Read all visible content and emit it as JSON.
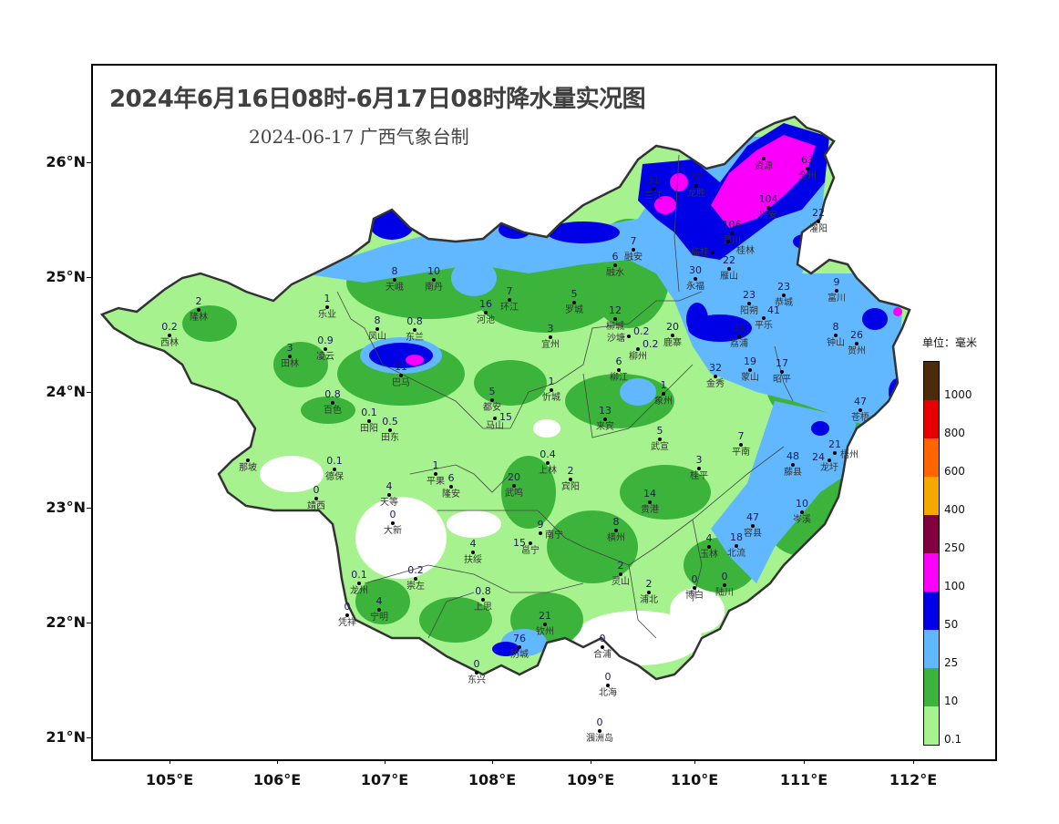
{
  "title": "2024年6月16日08时-6月17日08时降水量实况图",
  "subtitle": "2024-06-17  广西气象台制",
  "axes": {
    "lat_labels": [
      "26°N",
      "25°N",
      "24°N",
      "23°N",
      "22°N",
      "21°N"
    ],
    "lon_labels": [
      "105°E",
      "106°E",
      "107°E",
      "108°E",
      "109°E",
      "110°E",
      "111°E",
      "112°E"
    ]
  },
  "legend": {
    "unit": "单位：毫米",
    "levels": [
      {
        "label": "1000",
        "color": "#4d2a0a"
      },
      {
        "label": "800",
        "color": "#e60000"
      },
      {
        "label": "600",
        "color": "#ff6600"
      },
      {
        "label": "400",
        "color": "#f5a800"
      },
      {
        "label": "250",
        "color": "#800040"
      },
      {
        "label": "100",
        "color": "#fa00fa"
      },
      {
        "label": "50",
        "color": "#0000e6"
      },
      {
        "label": "25",
        "color": "#61b8ff"
      },
      {
        "label": "10",
        "color": "#3cb43c"
      },
      {
        "label": "0.1",
        "color": "#a6f28f"
      }
    ]
  },
  "stations": [
    {
      "name": "隆林",
      "value": "2"
    },
    {
      "name": "西林",
      "value": "0.2"
    },
    {
      "name": "乐业",
      "value": "1"
    },
    {
      "name": "田林",
      "value": "3"
    },
    {
      "name": "凌云",
      "value": "0.9"
    },
    {
      "name": "凤山",
      "value": "8"
    },
    {
      "name": "东兰",
      "value": "0.8"
    },
    {
      "name": "天峨",
      "value": "8"
    },
    {
      "name": "南丹",
      "value": "10"
    },
    {
      "name": "巴马",
      "value": "11"
    },
    {
      "name": "河池",
      "value": "16"
    },
    {
      "name": "环江",
      "value": "7"
    },
    {
      "name": "罗城",
      "value": "5"
    },
    {
      "name": "宜州",
      "value": "3"
    },
    {
      "name": "融水",
      "value": "6"
    },
    {
      "name": "融安",
      "value": "7"
    },
    {
      "name": "三江",
      "value": "31"
    },
    {
      "name": "龙胜",
      "value": "37"
    },
    {
      "name": "资源",
      "value": ""
    },
    {
      "name": "全州",
      "value": "63"
    },
    {
      "name": "兴安",
      "value": "104"
    },
    {
      "name": "灌阳",
      "value": "22"
    },
    {
      "name": "灵川",
      "value": "106"
    },
    {
      "name": "桂林",
      "value": ""
    },
    {
      "name": "临桂",
      "value": ""
    },
    {
      "name": "雁山",
      "value": "22"
    },
    {
      "name": "永福",
      "value": "30"
    },
    {
      "name": "阳朔",
      "value": "23"
    },
    {
      "name": "恭城",
      "value": "23"
    },
    {
      "name": "平乐",
      "value": "41"
    },
    {
      "name": "荔浦",
      "value": "31"
    },
    {
      "name": "富川",
      "value": "9"
    },
    {
      "name": "钟山",
      "value": "8"
    },
    {
      "name": "贺州",
      "value": "26"
    },
    {
      "name": "蒙山",
      "value": "19"
    },
    {
      "name": "昭平",
      "value": "17"
    },
    {
      "name": "金秀",
      "value": "32"
    },
    {
      "name": "柳城",
      "value": "12"
    },
    {
      "name": "沙塘",
      "value": "0.2"
    },
    {
      "name": "柳州",
      "value": "0.2"
    },
    {
      "name": "柳江",
      "value": "6"
    },
    {
      "name": "鹿寨",
      "value": "20"
    },
    {
      "name": "忻城",
      "value": "1"
    },
    {
      "name": "象州",
      "value": "1"
    },
    {
      "name": "都安",
      "value": "5"
    },
    {
      "name": "马山",
      "value": "15"
    },
    {
      "name": "来宾",
      "value": "13"
    },
    {
      "name": "武宣",
      "value": "5"
    },
    {
      "name": "百色",
      "value": "0.8"
    },
    {
      "name": "田阳",
      "value": "0.1"
    },
    {
      "name": "田东",
      "value": "0.5"
    },
    {
      "name": "那坡",
      "value": ""
    },
    {
      "name": "德保",
      "value": "0.1"
    },
    {
      "name": "靖西",
      "value": "0"
    },
    {
      "name": "天等",
      "value": "4"
    },
    {
      "name": "大新",
      "value": "0"
    },
    {
      "name": "平果",
      "value": "1"
    },
    {
      "name": "隆安",
      "value": "6"
    },
    {
      "name": "武鸣",
      "value": "20"
    },
    {
      "name": "上林",
      "value": "0.4"
    },
    {
      "name": "宾阳",
      "value": "2"
    },
    {
      "name": "南宁",
      "value": "9"
    },
    {
      "name": "邕宁",
      "value": "15"
    },
    {
      "name": "扶绥",
      "value": "4"
    },
    {
      "name": "龙州",
      "value": "0.1"
    },
    {
      "name": "崇左",
      "value": "0.2"
    },
    {
      "name": "宁明",
      "value": "4"
    },
    {
      "name": "凭祥",
      "value": "0"
    },
    {
      "name": "上思",
      "value": "0.8"
    },
    {
      "name": "钦州",
      "value": "21"
    },
    {
      "name": "防城",
      "value": "76"
    },
    {
      "name": "东兴",
      "value": "0"
    },
    {
      "name": "合浦",
      "value": "0"
    },
    {
      "name": "北海",
      "value": "0"
    },
    {
      "name": "涠洲岛",
      "value": "0"
    },
    {
      "name": "灵山",
      "value": "2"
    },
    {
      "name": "浦北",
      "value": "2"
    },
    {
      "name": "博白",
      "value": "0"
    },
    {
      "name": "陆川",
      "value": "0"
    },
    {
      "name": "横州",
      "value": "8"
    },
    {
      "name": "贵港",
      "value": "14"
    },
    {
      "name": "桂平",
      "value": "3"
    },
    {
      "name": "平南",
      "value": "7"
    },
    {
      "name": "玉林",
      "value": "4"
    },
    {
      "name": "北流",
      "value": "18"
    },
    {
      "name": "容县",
      "value": "47"
    },
    {
      "name": "藤县",
      "value": "48"
    },
    {
      "name": "岑溪",
      "value": "10"
    },
    {
      "name": "苍梧",
      "value": "47"
    },
    {
      "name": "梧州",
      "value": "21"
    },
    {
      "name": "龙圩",
      "value": "24"
    }
  ]
}
